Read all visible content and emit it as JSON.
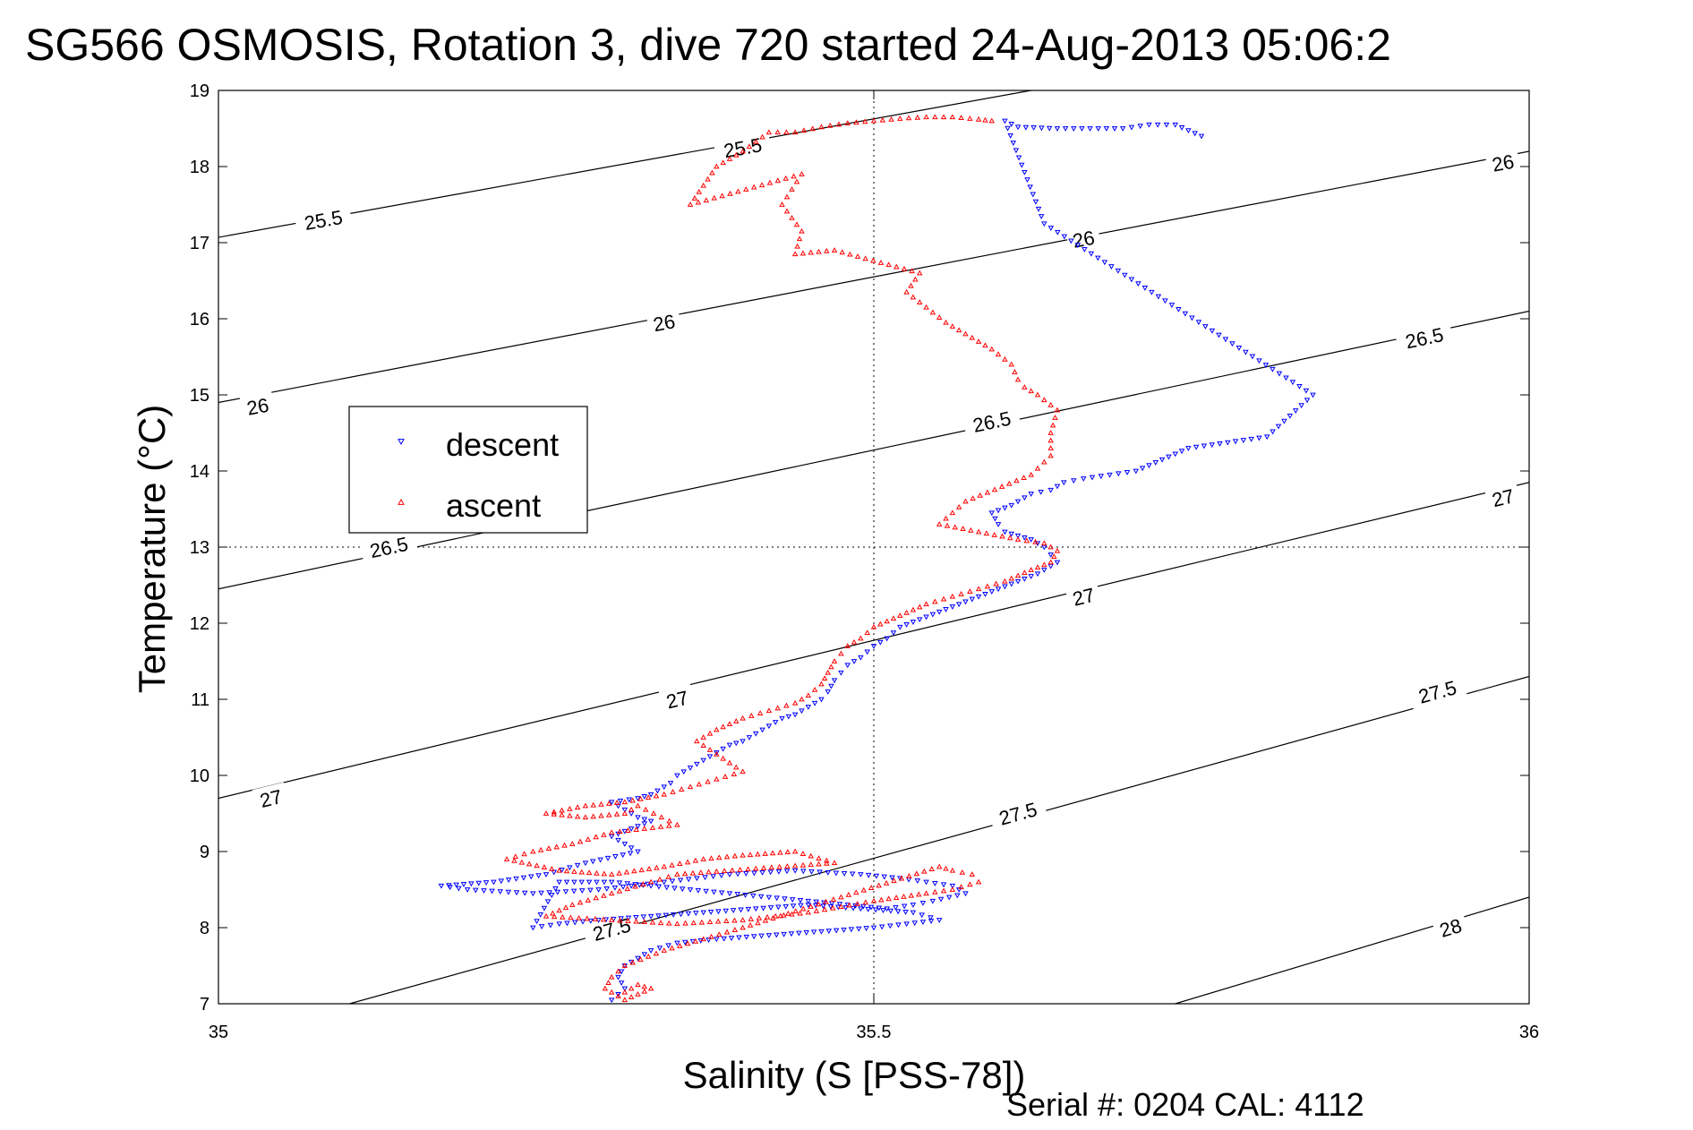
{
  "chart_data": {
    "type": "scatter",
    "title": "SG566 OSMOSIS, Rotation 3, dive 720 started 24-Aug-2013 05:06:2",
    "xlabel": "Salinity (S [PSS-78])",
    "ylabel": "Temperature (°C)",
    "xlim": [
      35,
      36
    ],
    "ylim": [
      7,
      19
    ],
    "xticks": [
      35,
      35.5,
      36
    ],
    "xtick_labels": [
      "35",
      "35.5",
      "36"
    ],
    "yticks": [
      7,
      8,
      9,
      10,
      11,
      12,
      13,
      14,
      15,
      16,
      17,
      18,
      19
    ],
    "ytick_labels": [
      "7",
      "8",
      "9",
      "10",
      "11",
      "12",
      "13",
      "14",
      "15",
      "16",
      "17",
      "18",
      "19"
    ],
    "grid": "dotted center lines",
    "legend_position": "upper-left",
    "footer": "Serial #: 0204  CAL: 4112",
    "density_contours": [
      {
        "label": "25.5",
        "points": [
          [
            35.0,
            17.07
          ],
          [
            35.62,
            19.0
          ]
        ],
        "label_positions": [
          [
            35.08,
            17.3
          ],
          [
            35.4,
            18.25
          ]
        ]
      },
      {
        "label": "26",
        "points": [
          [
            35.0,
            14.9
          ],
          [
            36.0,
            18.2
          ]
        ],
        "label_positions": [
          [
            35.03,
            14.85
          ],
          [
            35.34,
            15.95
          ],
          [
            35.66,
            17.05
          ],
          [
            35.98,
            18.05
          ]
        ]
      },
      {
        "label": "26.5",
        "points": [
          [
            35.0,
            12.45
          ],
          [
            36.0,
            16.1
          ]
        ],
        "label_positions": [
          [
            35.13,
            13.0
          ],
          [
            35.59,
            14.65
          ],
          [
            35.92,
            15.75
          ]
        ]
      },
      {
        "label": "27",
        "points": [
          [
            35.0,
            9.7
          ],
          [
            36.0,
            13.85
          ]
        ],
        "label_positions": [
          [
            35.04,
            9.7
          ],
          [
            35.35,
            11.0
          ],
          [
            35.66,
            12.35
          ],
          [
            35.98,
            13.65
          ]
        ]
      },
      {
        "label": "27.5",
        "points": [
          [
            35.1,
            7.0
          ],
          [
            36.0,
            11.3
          ]
        ],
        "label_positions": [
          [
            35.3,
            7.98
          ],
          [
            35.61,
            9.5
          ],
          [
            35.93,
            11.1
          ]
        ]
      },
      {
        "label": "28",
        "points": [
          [
            35.73,
            7.0
          ],
          [
            36.0,
            8.4
          ]
        ],
        "label_positions": [
          [
            35.94,
            8.0
          ]
        ]
      }
    ],
    "series": [
      {
        "name": "descent",
        "color": "#0000ff",
        "marker": "triangle-down",
        "x": [
          35.75,
          35.73,
          35.71,
          35.69,
          35.64,
          35.61,
          35.6,
          35.63,
          35.835,
          35.8,
          35.74,
          35.72,
          35.7,
          35.68,
          35.66,
          35.645,
          35.635,
          35.62,
          35.605,
          35.59,
          35.595,
          35.6,
          35.61,
          35.62,
          35.63,
          35.635,
          35.64,
          35.625,
          35.61,
          35.595,
          35.58,
          35.565,
          35.55,
          35.535,
          35.52,
          35.51,
          35.5,
          35.49,
          35.48,
          35.475,
          35.47,
          35.465,
          35.46,
          35.45,
          35.445,
          35.44,
          35.43,
          35.42,
          35.41,
          35.4,
          35.39,
          35.38,
          35.37,
          35.36,
          35.35,
          35.345,
          35.33,
          35.32,
          35.3,
          35.31,
          35.32,
          35.33,
          35.315,
          35.3,
          35.32,
          35.28,
          35.25,
          35.21,
          35.17,
          35.19,
          35.24,
          35.29,
          35.34,
          35.39,
          35.44,
          35.49,
          35.52,
          35.54,
          35.56,
          35.57,
          35.545,
          35.53,
          35.51,
          35.48,
          35.45,
          35.42,
          35.39,
          35.36,
          35.33,
          35.3,
          35.26,
          35.24,
          35.26,
          35.29,
          35.33,
          35.37,
          35.41,
          35.45,
          35.49,
          35.53,
          35.55,
          35.5,
          35.46,
          35.42,
          35.38,
          35.35,
          35.33,
          35.32,
          35.31,
          35.305,
          35.31,
          35.3
        ],
        "y": [
          18.4,
          18.55,
          18.55,
          18.5,
          18.5,
          18.52,
          18.6,
          17.25,
          15.0,
          14.45,
          14.3,
          14.15,
          14.0,
          13.95,
          13.9,
          13.85,
          13.75,
          13.7,
          13.55,
          13.45,
          13.3,
          13.2,
          13.15,
          13.1,
          13.0,
          12.9,
          12.8,
          12.65,
          12.55,
          12.45,
          12.35,
          12.25,
          12.15,
          12.05,
          11.95,
          11.8,
          11.7,
          11.55,
          11.45,
          11.35,
          11.25,
          11.1,
          11.0,
          10.9,
          10.85,
          10.8,
          10.75,
          10.65,
          10.55,
          10.45,
          10.4,
          10.3,
          10.2,
          10.1,
          10.0,
          9.9,
          9.75,
          9.7,
          9.65,
          9.55,
          9.45,
          9.4,
          9.3,
          9.2,
          9.0,
          8.85,
          8.7,
          8.6,
          8.55,
          8.5,
          8.45,
          8.5,
          8.6,
          8.7,
          8.75,
          8.7,
          8.65,
          8.6,
          8.55,
          8.45,
          8.35,
          8.3,
          8.25,
          8.3,
          8.35,
          8.4,
          8.45,
          8.5,
          8.55,
          8.6,
          8.6,
          8.0,
          8.05,
          8.1,
          8.15,
          8.2,
          8.25,
          8.3,
          8.25,
          8.2,
          8.1,
          8.0,
          7.95,
          7.9,
          7.85,
          7.8,
          7.7,
          7.6,
          7.5,
          7.35,
          7.2,
          7.05
        ]
      },
      {
        "name": "ascent",
        "color": "#ff0000",
        "marker": "triangle-up",
        "x": [
          35.59,
          35.58,
          35.56,
          35.54,
          35.52,
          35.5,
          35.48,
          35.46,
          35.44,
          35.42,
          35.4,
          35.38,
          35.36,
          35.445,
          35.43,
          35.445,
          35.44,
          35.47,
          35.535,
          35.525,
          35.555,
          35.59,
          35.605,
          35.61,
          35.615,
          35.625,
          35.64,
          35.635,
          35.635,
          35.62,
          35.57,
          35.55,
          35.58,
          35.61,
          35.63,
          35.64,
          35.635,
          35.62,
          35.6,
          35.58,
          35.56,
          35.54,
          35.52,
          35.5,
          35.49,
          35.48,
          35.475,
          35.47,
          35.465,
          35.46,
          35.45,
          35.44,
          35.42,
          35.4,
          35.38,
          35.365,
          35.4,
          35.38,
          35.36,
          35.34,
          35.31,
          35.28,
          35.25,
          35.28,
          35.31,
          35.32,
          35.35,
          35.3,
          35.27,
          35.24,
          35.22,
          35.26,
          35.3,
          35.34,
          35.37,
          35.4,
          35.44,
          35.47,
          35.35,
          35.33,
          35.3,
          35.27,
          35.25,
          35.35,
          35.4,
          35.45,
          35.5,
          35.54,
          35.56,
          35.58,
          35.575,
          35.56,
          35.55,
          35.4,
          35.37,
          35.34,
          35.31,
          35.3,
          35.295,
          35.305,
          35.32,
          35.33,
          35.31
        ],
        "y": [
          18.6,
          18.62,
          18.65,
          18.65,
          18.63,
          18.6,
          18.57,
          18.52,
          18.45,
          18.45,
          18.2,
          18.0,
          17.5,
          17.9,
          17.5,
          17.15,
          16.85,
          16.9,
          16.6,
          16.35,
          15.95,
          15.6,
          15.4,
          15.2,
          15.1,
          15.0,
          14.8,
          14.5,
          14.2,
          13.95,
          13.6,
          13.3,
          13.2,
          13.1,
          13.05,
          12.95,
          12.8,
          12.7,
          12.55,
          12.45,
          12.35,
          12.25,
          12.1,
          11.95,
          11.8,
          11.7,
          11.6,
          11.5,
          11.35,
          11.2,
          11.05,
          10.95,
          10.85,
          10.75,
          10.6,
          10.45,
          10.05,
          9.95,
          9.85,
          9.75,
          9.65,
          9.6,
          9.5,
          9.45,
          9.5,
          9.6,
          9.35,
          9.25,
          9.1,
          9.0,
          8.9,
          8.75,
          8.7,
          8.8,
          8.9,
          8.95,
          9.0,
          8.85,
          8.7,
          8.6,
          8.45,
          8.3,
          8.15,
          8.05,
          8.1,
          8.2,
          8.35,
          8.45,
          8.5,
          8.6,
          8.7,
          8.75,
          8.8,
          8.0,
          7.85,
          7.7,
          7.5,
          7.35,
          7.2,
          7.1,
          7.25,
          7.2,
          7.05
        ]
      }
    ]
  }
}
